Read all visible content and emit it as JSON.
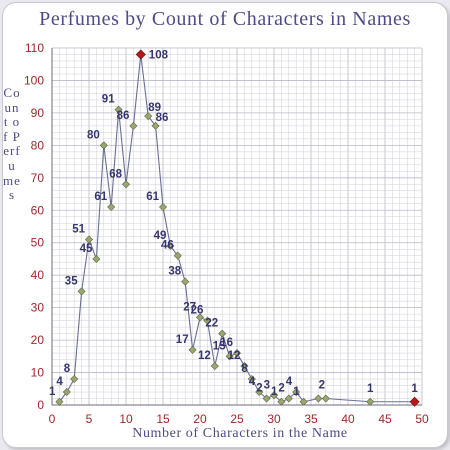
{
  "chart_data": {
    "type": "line",
    "title": "Perfumes by Count of Characters in Names",
    "xlabel": "Number of Characters in the Name",
    "ylabel": "Count of Perfumes",
    "xlim": [
      0,
      50
    ],
    "ylim": [
      0,
      110
    ],
    "xticks": [
      0,
      5,
      10,
      15,
      20,
      25,
      30,
      35,
      40,
      45,
      50
    ],
    "yticks": [
      0,
      10,
      20,
      30,
      40,
      50,
      60,
      70,
      80,
      90,
      100,
      110
    ],
    "grid": true,
    "colors": {
      "line": "#6a6f96",
      "marker": "#9aa672",
      "highlight": "#b31b1b",
      "grid": "#cfcfd8",
      "text": "#35356b",
      "tick": "#a0282b"
    },
    "series": [
      {
        "x": [
          1,
          2,
          3,
          4,
          5,
          6,
          7,
          8,
          9,
          10,
          11,
          12,
          13,
          14,
          15,
          16,
          17,
          18,
          19,
          20,
          21,
          22,
          23,
          24,
          25,
          26,
          27,
          28,
          29,
          30,
          31,
          32,
          33,
          34,
          36,
          37,
          43,
          49
        ],
        "values": [
          1,
          4,
          8,
          35,
          51,
          45,
          80,
          61,
          91,
          68,
          86,
          108,
          89,
          86,
          61,
          49,
          46,
          38,
          17,
          27,
          26,
          12,
          22,
          15,
          16,
          12,
          8,
          4,
          2,
          3,
          1,
          2,
          4,
          1,
          2,
          2,
          1,
          1
        ],
        "data_labels": [
          "1",
          "4",
          "8",
          "35",
          "51",
          "45",
          "80",
          "61",
          "91",
          "68",
          "86",
          "108",
          "89",
          "86",
          "61",
          "49",
          "46",
          "38",
          "17",
          "27",
          "26",
          "12",
          "22",
          "15",
          "16",
          "12",
          "8",
          "4",
          "2",
          "3",
          "1",
          "2",
          "4",
          "1",
          "",
          "2",
          "1",
          "1"
        ],
        "highlight_x": [
          12,
          49
        ]
      }
    ]
  }
}
